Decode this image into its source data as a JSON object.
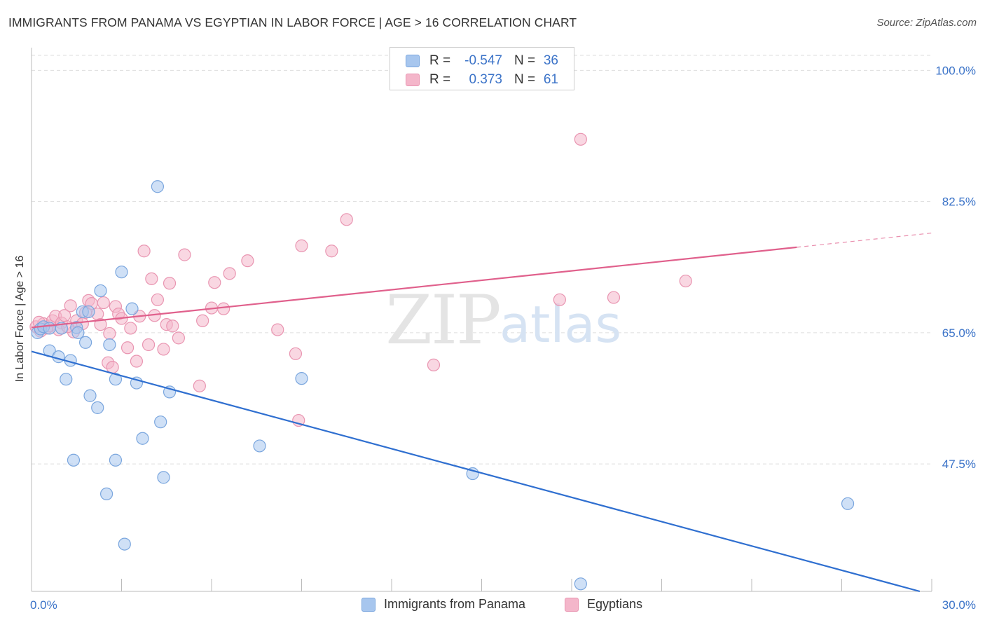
{
  "header": {
    "title": "IMMIGRANTS FROM PANAMA VS EGYPTIAN IN LABOR FORCE | AGE > 16 CORRELATION CHART",
    "source": "Source: ZipAtlas.com"
  },
  "watermark": {
    "zip": "ZIP",
    "atlas": "atlas"
  },
  "legend_top": {
    "rows": [
      {
        "r_label": "R =",
        "r_value": "-0.547",
        "n_label": "N =",
        "n_value": "36",
        "color": "#a7c6ee"
      },
      {
        "r_label": "R =",
        "r_value": "0.373",
        "n_label": "N =",
        "n_value": "61",
        "color": "#f4b6ca"
      }
    ]
  },
  "legend_bottom": {
    "items": [
      {
        "label": "Immigrants from Panama",
        "color": "#a7c6ee"
      },
      {
        "label": "Egyptians",
        "color": "#f4b6ca"
      }
    ]
  },
  "colors": {
    "blue_fill": "#a7c6ee",
    "blue_stroke": "#7aa6de",
    "blue_line": "#2f6fd0",
    "pink_fill": "#f4b6ca",
    "pink_stroke": "#e995b1",
    "pink_line": "#e0608c",
    "tick_label": "#3b73c8",
    "grid": "#dddddd"
  },
  "chart_data": {
    "type": "scatter",
    "title": "IMMIGRANTS FROM PANAMA VS EGYPTIAN IN LABOR FORCE | AGE > 16 CORRELATION CHART",
    "xlabel": "",
    "ylabel": "In Labor Force | Age > 16",
    "xlim": [
      0,
      30
    ],
    "ylim": [
      30.5,
      102
    ],
    "x_tick_labels": [
      "0.0%",
      "30.0%"
    ],
    "x_tick_values": [
      0,
      30
    ],
    "y_tick_labels": [
      "47.5%",
      "65.0%",
      "82.5%",
      "100.0%"
    ],
    "y_tick_values": [
      47.5,
      65.0,
      82.5,
      100.0
    ],
    "grid": true,
    "legend_position": "top-center",
    "series": [
      {
        "name": "Immigrants from Panama",
        "r": -0.547,
        "n": 36,
        "trend": {
          "x": [
            0,
            29.6
          ],
          "y": [
            62.5,
            30.5
          ]
        },
        "points": [
          [
            0.2,
            65.0
          ],
          [
            0.3,
            65.5
          ],
          [
            0.4,
            65.8
          ],
          [
            0.6,
            65.6
          ],
          [
            1.0,
            65.6
          ],
          [
            1.5,
            65.7
          ],
          [
            1.55,
            65.0
          ],
          [
            1.7,
            67.8
          ],
          [
            1.9,
            67.8
          ],
          [
            2.3,
            70.6
          ],
          [
            3.0,
            73.1
          ],
          [
            3.35,
            68.2
          ],
          [
            4.2,
            84.5
          ],
          [
            0.6,
            62.6
          ],
          [
            0.9,
            61.8
          ],
          [
            1.3,
            61.3
          ],
          [
            1.8,
            63.7
          ],
          [
            2.6,
            63.4
          ],
          [
            1.15,
            58.8
          ],
          [
            2.8,
            58.8
          ],
          [
            3.5,
            58.3
          ],
          [
            4.6,
            57.1
          ],
          [
            9.0,
            58.9
          ],
          [
            1.95,
            56.6
          ],
          [
            2.2,
            55.0
          ],
          [
            4.3,
            53.1
          ],
          [
            3.7,
            50.9
          ],
          [
            7.6,
            49.9
          ],
          [
            1.4,
            48.0
          ],
          [
            2.8,
            48.0
          ],
          [
            4.4,
            45.7
          ],
          [
            14.7,
            46.2
          ],
          [
            2.5,
            43.5
          ],
          [
            27.2,
            42.2
          ],
          [
            3.1,
            36.8
          ],
          [
            18.3,
            31.5
          ]
        ]
      },
      {
        "name": "Egyptians",
        "r": 0.373,
        "n": 61,
        "trend": {
          "x": [
            0,
            25.5
          ],
          "y": [
            65.7,
            76.4
          ]
        },
        "trend_dashed": {
          "x": [
            25.5,
            30
          ],
          "y": [
            76.4,
            78.3
          ]
        },
        "points": [
          [
            0.15,
            65.8
          ],
          [
            0.3,
            65.2
          ],
          [
            0.4,
            66.2
          ],
          [
            0.5,
            65.6
          ],
          [
            0.6,
            65.9
          ],
          [
            0.7,
            66.6
          ],
          [
            0.8,
            67.2
          ],
          [
            1.0,
            66.3
          ],
          [
            1.1,
            67.3
          ],
          [
            1.3,
            68.6
          ],
          [
            1.4,
            65.1
          ],
          [
            1.5,
            66.6
          ],
          [
            1.7,
            66.2
          ],
          [
            1.8,
            67.7
          ],
          [
            1.9,
            69.3
          ],
          [
            2.0,
            68.9
          ],
          [
            2.2,
            67.5
          ],
          [
            2.3,
            66.1
          ],
          [
            2.4,
            69.0
          ],
          [
            2.6,
            64.9
          ],
          [
            2.8,
            68.5
          ],
          [
            2.9,
            67.5
          ],
          [
            3.0,
            66.9
          ],
          [
            3.2,
            63.0
          ],
          [
            3.3,
            65.6
          ],
          [
            3.5,
            61.2
          ],
          [
            3.6,
            67.2
          ],
          [
            3.75,
            75.9
          ],
          [
            3.9,
            63.4
          ],
          [
            4.0,
            72.2
          ],
          [
            4.2,
            69.4
          ],
          [
            4.1,
            67.3
          ],
          [
            4.4,
            62.8
          ],
          [
            4.5,
            66.1
          ],
          [
            4.6,
            71.6
          ],
          [
            4.7,
            65.9
          ],
          [
            4.9,
            64.3
          ],
          [
            5.1,
            75.4
          ],
          [
            5.6,
            57.9
          ],
          [
            5.7,
            66.6
          ],
          [
            6.0,
            68.3
          ],
          [
            6.1,
            71.7
          ],
          [
            6.4,
            68.2
          ],
          [
            6.6,
            72.9
          ],
          [
            7.2,
            74.6
          ],
          [
            8.2,
            65.4
          ],
          [
            8.8,
            62.2
          ],
          [
            8.9,
            53.3
          ],
          [
            9.0,
            76.6
          ],
          [
            10.0,
            75.9
          ],
          [
            10.5,
            80.1
          ],
          [
            13.4,
            60.7
          ],
          [
            17.6,
            69.4
          ],
          [
            18.3,
            90.8
          ],
          [
            19.4,
            69.7
          ],
          [
            21.8,
            71.9
          ],
          [
            2.55,
            61.0
          ],
          [
            0.9,
            65.4
          ],
          [
            1.2,
            65.8
          ],
          [
            2.7,
            60.4
          ],
          [
            0.25,
            66.4
          ]
        ]
      }
    ]
  }
}
